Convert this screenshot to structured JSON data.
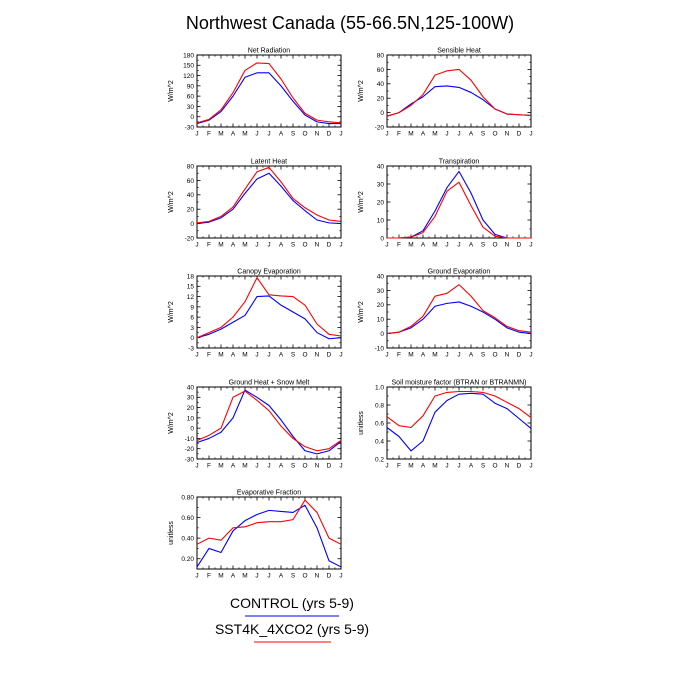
{
  "figure_title": "Northwest Canada (55-66.5N,125-100W)",
  "month_labels": [
    "J",
    "F",
    "M",
    "A",
    "M",
    "J",
    "J",
    "A",
    "S",
    "O",
    "N",
    "D",
    "J"
  ],
  "colors": {
    "control": "#0000ff",
    "sst4k": "#ff0000",
    "axis": "#000000"
  },
  "legend": {
    "control_label": "CONTROL (yrs 5-9)",
    "sst4k_label": "SST4K_4XCO2 (yrs 5-9)"
  },
  "chart_data": [
    {
      "type": "line",
      "title": "Net Radiation",
      "ylabel": "W/m^2",
      "ylim": [
        -30,
        180
      ],
      "yticks": [
        -30,
        0,
        30,
        60,
        90,
        120,
        150,
        180
      ],
      "ytick_labels": [
        "-30",
        "0",
        "30",
        "60",
        "90",
        "120",
        "150",
        "180"
      ],
      "series": [
        {
          "name": "CONTROL (yrs 5-9)",
          "values": [
            -20,
            -10,
            15,
            60,
            115,
            128,
            128,
            90,
            45,
            5,
            -15,
            -20,
            -20
          ]
        },
        {
          "name": "SST4K_4XCO2 (yrs 5-9)",
          "values": [
            -18,
            -8,
            20,
            70,
            135,
            157,
            155,
            110,
            55,
            10,
            -10,
            -15,
            -18
          ]
        }
      ]
    },
    {
      "type": "line",
      "title": "Sensible Heat",
      "ylabel": "W/m^2",
      "ylim": [
        -20,
        80
      ],
      "yticks": [
        -20,
        0,
        20,
        40,
        60,
        80
      ],
      "ytick_labels": [
        "-20",
        "0",
        "20",
        "40",
        "60",
        "80"
      ],
      "series": [
        {
          "name": "CONTROL (yrs 5-9)",
          "values": [
            -5,
            0,
            12,
            22,
            36,
            37,
            35,
            28,
            18,
            5,
            -2,
            -3,
            -4
          ]
        },
        {
          "name": "SST4K_4XCO2 (yrs 5-9)",
          "values": [
            -5,
            0,
            10,
            25,
            52,
            58,
            60,
            45,
            22,
            5,
            -2,
            -3,
            -4
          ]
        }
      ]
    },
    {
      "type": "line",
      "title": "Latent Heat",
      "ylabel": "W/m^2",
      "ylim": [
        -20,
        80
      ],
      "yticks": [
        -20,
        0,
        20,
        40,
        60,
        80
      ],
      "ytick_labels": [
        "-20",
        "0",
        "20",
        "40",
        "60",
        "80"
      ],
      "series": [
        {
          "name": "CONTROL (yrs 5-9)",
          "values": [
            0,
            2,
            8,
            20,
            42,
            62,
            70,
            52,
            32,
            18,
            5,
            1,
            0
          ]
        },
        {
          "name": "SST4K_4XCO2 (yrs 5-9)",
          "values": [
            1,
            3,
            10,
            23,
            48,
            72,
            78,
            58,
            35,
            22,
            12,
            5,
            3
          ]
        }
      ]
    },
    {
      "type": "line",
      "title": "Transpiration",
      "ylabel": "W/m^2",
      "ylim": [
        0,
        40
      ],
      "yticks": [
        0,
        10,
        20,
        30,
        40
      ],
      "ytick_labels": [
        "0",
        "10",
        "20",
        "30",
        "40"
      ],
      "series": [
        {
          "name": "CONTROL (yrs 5-9)",
          "values": [
            0,
            0,
            0.5,
            4,
            15,
            28,
            37,
            25,
            10,
            2,
            0,
            0,
            0
          ]
        },
        {
          "name": "SST4K_4XCO2 (yrs 5-9)",
          "values": [
            0,
            0,
            0.5,
            3,
            12,
            26,
            31,
            18,
            6,
            1,
            0,
            0,
            0
          ]
        }
      ]
    },
    {
      "type": "line",
      "title": "Canopy Evaporation",
      "ylabel": "W/m^2",
      "ylim": [
        -3,
        18
      ],
      "yticks": [
        -3,
        0,
        3,
        6,
        9,
        12,
        15,
        18
      ],
      "ytick_labels": [
        "-3",
        "0",
        "3",
        "6",
        "9",
        "12",
        "15",
        "18"
      ],
      "series": [
        {
          "name": "CONTROL (yrs 5-9)",
          "values": [
            0,
            1,
            2.5,
            4.5,
            6.5,
            12,
            12.2,
            9.5,
            7.5,
            5.5,
            1.5,
            -0.3,
            0
          ]
        },
        {
          "name": "SST4K_4XCO2 (yrs 5-9)",
          "values": [
            0,
            1.5,
            3,
            6,
            10.5,
            17.5,
            12.5,
            12.2,
            12,
            9.5,
            4,
            1,
            0.5
          ]
        }
      ]
    },
    {
      "type": "line",
      "title": "Ground Evaporation",
      "ylabel": "W/m^2",
      "ylim": [
        -10,
        40
      ],
      "yticks": [
        -10,
        0,
        10,
        20,
        30,
        40
      ],
      "ytick_labels": [
        "-10",
        "0",
        "10",
        "20",
        "30",
        "40"
      ],
      "series": [
        {
          "name": "CONTROL (yrs 5-9)",
          "values": [
            0,
            1,
            4,
            10,
            19,
            21,
            22,
            19,
            15,
            10,
            4,
            1,
            0
          ]
        },
        {
          "name": "SST4K_4XCO2 (yrs 5-9)",
          "values": [
            0,
            1,
            5,
            12,
            26,
            28,
            34,
            26,
            16,
            11,
            5,
            2,
            1
          ]
        }
      ]
    },
    {
      "type": "line",
      "title": "Ground Heat + Snow Melt",
      "ylabel": "W/m^2",
      "ylim": [
        -30,
        40
      ],
      "yticks": [
        -30,
        -20,
        -10,
        0,
        10,
        20,
        30,
        40
      ],
      "ytick_labels": [
        "-30",
        "-20",
        "-10",
        "0",
        "10",
        "20",
        "30",
        "40"
      ],
      "series": [
        {
          "name": "CONTROL (yrs 5-9)",
          "values": [
            -14,
            -10,
            -4,
            10,
            37,
            30,
            22,
            8,
            -8,
            -22,
            -25,
            -22,
            -13
          ]
        },
        {
          "name": "SST4K_4XCO2 (yrs 5-9)",
          "values": [
            -12,
            -7,
            0,
            30,
            36,
            27,
            17,
            2,
            -10,
            -18,
            -22,
            -20,
            -12
          ]
        }
      ]
    },
    {
      "type": "line",
      "title": "Soil moisture factor (BTRAN or BTRANMN)",
      "ylabel": "unitless",
      "ylim": [
        0.2,
        1.0
      ],
      "yticks": [
        0.2,
        0.4,
        0.6,
        0.8,
        1.0
      ],
      "ytick_labels": [
        "0.2",
        "0.4",
        "0.6",
        "0.8",
        "1.0"
      ],
      "series": [
        {
          "name": "CONTROL (yrs 5-9)",
          "values": [
            0.55,
            0.45,
            0.29,
            0.4,
            0.72,
            0.85,
            0.92,
            0.93,
            0.92,
            0.82,
            0.76,
            0.65,
            0.54
          ]
        },
        {
          "name": "SST4K_4XCO2 (yrs 5-9)",
          "values": [
            0.67,
            0.57,
            0.55,
            0.68,
            0.9,
            0.94,
            0.95,
            0.95,
            0.94,
            0.9,
            0.83,
            0.76,
            0.66
          ]
        }
      ]
    },
    {
      "type": "line",
      "title": "Evaporative Fraction",
      "ylabel": "unitless",
      "ylim": [
        0.1,
        0.8
      ],
      "yticks": [
        0.2,
        0.4,
        0.6,
        0.8
      ],
      "ytick_labels": [
        "0.20",
        "0.40",
        "0.60",
        "0.80"
      ],
      "series": [
        {
          "name": "CONTROL (yrs 5-9)",
          "values": [
            0.12,
            0.3,
            0.26,
            0.47,
            0.57,
            0.63,
            0.67,
            0.66,
            0.65,
            0.72,
            0.5,
            0.18,
            0.12
          ]
        },
        {
          "name": "SST4K_4XCO2 (yrs 5-9)",
          "values": [
            0.34,
            0.4,
            0.38,
            0.5,
            0.51,
            0.55,
            0.56,
            0.56,
            0.58,
            0.77,
            0.65,
            0.4,
            0.34
          ]
        }
      ]
    }
  ]
}
